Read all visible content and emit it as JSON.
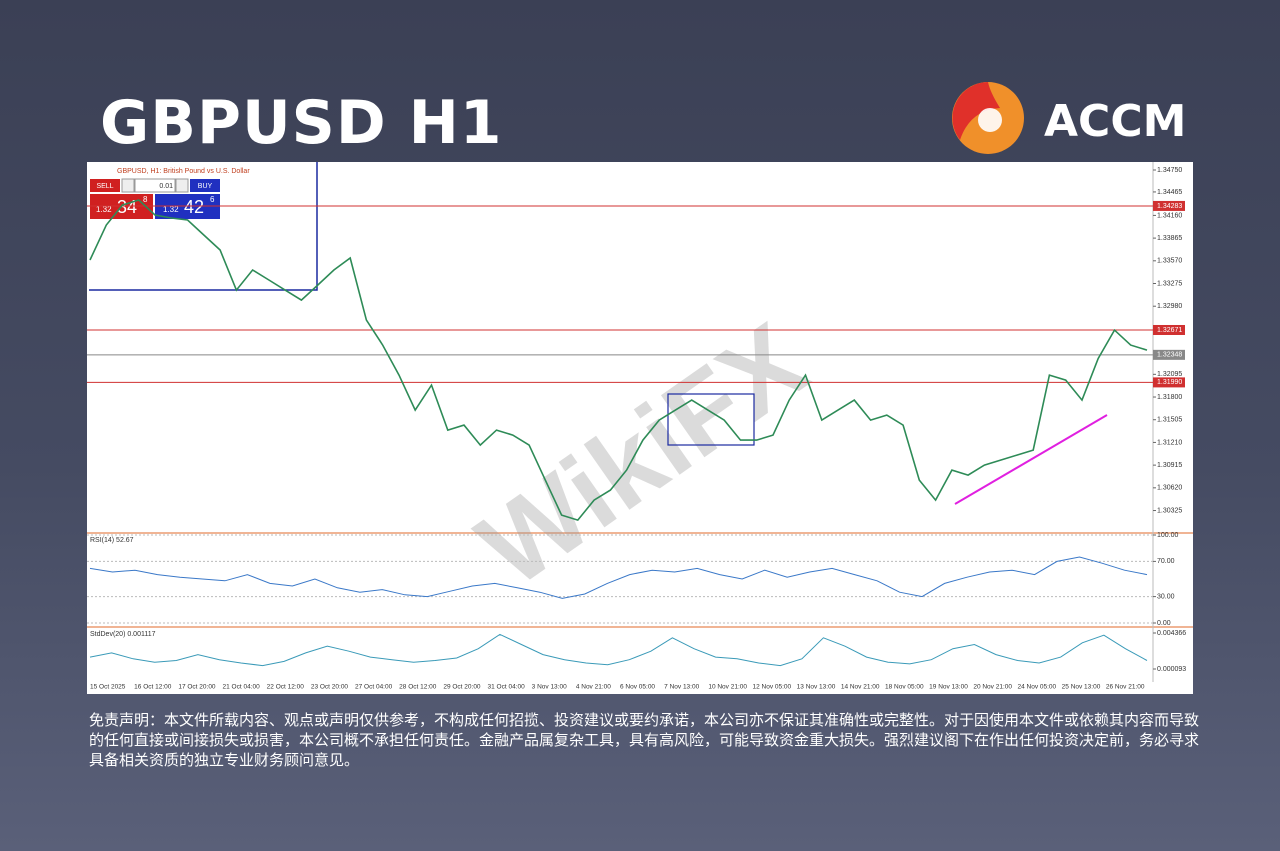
{
  "header": {
    "title": "GBPUSD H1",
    "brand": "ACCM"
  },
  "chart_header": "GBPUSD, H1: British Pound vs U.S. Dollar",
  "watermark": "WikiFX",
  "trade_panel": {
    "sell": "SELL",
    "buy": "BUY",
    "lot": "0.01",
    "sell_price": {
      "big": "1.32",
      "main": "34",
      "sup": "8"
    },
    "buy_price": {
      "big": "1.32",
      "main": "42",
      "sup": "6"
    }
  },
  "chart_data": [
    {
      "type": "line",
      "color": "#2e8b57",
      "values": [
        1.3358,
        1.34035,
        1.34295,
        1.3436,
        1.34165,
        1.34126,
        1.341,
        1.33905,
        1.3371,
        1.3319,
        1.3345,
        1.3332,
        1.3319,
        1.3306,
        1.33255,
        1.3345,
        1.33606,
        1.328,
        1.32475,
        1.32085,
        1.3163,
        1.31955,
        1.3137,
        1.31435,
        1.31175,
        1.3137,
        1.31305,
        1.31175,
        1.3072,
        1.30265,
        1.302,
        1.3046,
        1.3059,
        1.3085,
        1.3124,
        1.315,
        1.3163,
        1.3176,
        1.3163,
        1.315,
        1.3124,
        1.3124,
        1.31305,
        1.3176,
        1.32085,
        1.315,
        1.3163,
        1.3176,
        1.315,
        1.31565,
        1.31435,
        1.3072,
        1.3046,
        1.3085,
        1.30785,
        1.30915,
        1.3098,
        1.31045,
        1.3111,
        1.32085,
        1.3202,
        1.3176,
        1.323,
        1.3267,
        1.32475,
        1.3241
      ],
      "ylim": [
        1.30046,
        1.34841
      ],
      "yticks": [
        {
          "value": 1.3475,
          "label": "1.34750"
        },
        1.34465,
        {
          "value": 1.3416,
          "label": "1.34160"
        },
        1.33865,
        {
          "value": 1.3357,
          "label": "1.33570"
        },
        1.33275,
        {
          "value": 1.3298,
          "label": "1.32980"
        },
        1.32095,
        {
          "value": 1.318,
          "label": "1.31800"
        },
        1.31505,
        {
          "value": 1.3121,
          "label": "1.31210"
        },
        1.30915,
        {
          "value": 1.3062,
          "label": "1.30620"
        },
        1.30325
      ],
      "levels": [
        {
          "value": 1.34283,
          "color": "#d03030"
        },
        {
          "value": 1.32671,
          "color": "#d03030"
        },
        {
          "value": 1.32348,
          "color": "#888888"
        },
        {
          "value": {
            "value": 1.3199,
            "label": "1.31990"
          },
          "color": "#d03030"
        }
      ],
      "time_labels": [
        "15 Oct 2025",
        "16 Oct 12:00",
        "17 Oct 20:00",
        "21 Oct 04:00",
        "22 Oct 12:00",
        "23 Oct 20:00",
        "27 Oct 04:00",
        "28 Oct 12:00",
        "29 Oct 20:00",
        "31 Oct 04:00",
        "3 Nov 13:00",
        "4 Nov 21:00",
        "6 Nov 05:00",
        "7 Nov 13:00",
        "10 Nov 21:00",
        "12 Nov 05:00",
        "13 Nov 13:00",
        "14 Nov 21:00",
        "18 Nov 05:00",
        "19 Nov 13:00",
        "20 Nov 21:00",
        "24 Nov 05:00",
        "25 Nov 13:00",
        "26 Nov 21:00"
      ]
    },
    {
      "type": "line",
      "title": "RSI(14) 52.67",
      "color": "#3a78c8",
      "values": [
        62,
        58,
        60,
        55,
        52,
        50,
        48,
        55,
        45,
        42,
        50,
        40,
        35,
        38,
        32,
        30,
        36,
        42,
        45,
        40,
        35,
        28,
        33,
        45,
        55,
        60,
        58,
        62,
        55,
        50,
        60,
        52,
        58,
        62,
        55,
        48,
        35,
        30,
        45,
        52,
        58,
        60,
        55,
        70,
        75,
        68,
        60,
        55
      ],
      "ylim": [
        0,
        100
      ],
      "yticks": [
        {
          "value": 100,
          "label": "100.00"
        },
        {
          "value": 70,
          "label": "70.00"
        },
        {
          "value": 30,
          "label": "30.00"
        },
        {
          "value": 0,
          "label": "0.00"
        }
      ]
    },
    {
      "type": "line",
      "title": "StdDev(20) 0.001117",
      "color": "#3a9ab8",
      "values": [
        0.0015,
        0.002,
        0.0013,
        0.0009,
        0.0011,
        0.0018,
        0.0012,
        0.0008,
        0.0005,
        0.001,
        0.002,
        0.0028,
        0.0022,
        0.0015,
        0.0012,
        0.0009,
        0.0011,
        0.0014,
        0.0025,
        0.0042,
        0.003,
        0.0018,
        0.0012,
        0.0008,
        0.0006,
        0.0012,
        0.0022,
        0.0038,
        0.0025,
        0.0015,
        0.0013,
        0.0008,
        0.0005,
        0.0013,
        0.0038,
        0.0028,
        0.0015,
        0.0009,
        0.0007,
        0.0012,
        0.0025,
        0.003,
        0.0018,
        0.0011,
        0.0008,
        0.0015,
        0.0032,
        0.0041,
        0.0025,
        0.0011
      ],
      "ylim": [
        -0.00145,
        0.004841
      ],
      "yticks": [
        0.004366,
        9.3e-05
      ]
    }
  ],
  "disclaimer": "免责声明：本文件所载内容、观点或声明仅供参考，不构成任何招揽、投资建议或要约承诺，本公司亦不保证其准确性或完整性。对于因使用本文件或依赖其内容而导致的任何直接或间接损失或损害，本公司概不承担任何责任。金融产品属复杂工具，具有高风险，可能导致资金重大损失。强烈建议阁下在作出任何投资决定前，务必寻求具备相关资质的独立专业财务顾问意见。"
}
